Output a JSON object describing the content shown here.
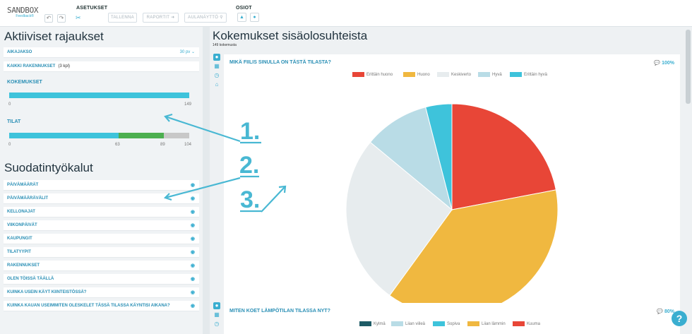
{
  "brand": {
    "name": "SANDBOX",
    "sub": "Feedback®"
  },
  "toolbar": {
    "asetukset_heading": "ASETUKSET",
    "osiot_heading": "OSIOT",
    "save_label": "TALLENNA",
    "reports_label": "RAPORTIT ➜",
    "aulanaytto_label": "AULANÄYTTÖ ⚲"
  },
  "left": {
    "active_title": "Aktiiviset rajaukset",
    "filters": [
      {
        "label": "AIKAJAKSO",
        "value": "30 pv ⌄"
      },
      {
        "label": "KAIKKI RAKENNUKSET",
        "sub": "(3 kpl)"
      }
    ],
    "kokemukset": {
      "label": "KOKEMUKSET",
      "min": "0",
      "max": "149",
      "total": 149
    },
    "tilat": {
      "label": "TILAT",
      "ticks": [
        "0",
        "63",
        "89",
        "104"
      ],
      "segments": [
        63,
        89,
        104
      ],
      "colors": [
        "#3ec3db",
        "#4caf50",
        "#c8c8c8"
      ]
    },
    "tools_title": "Suodatintyökalut",
    "tools": [
      "PÄIVÄMÄÄRÄT",
      "PÄIVÄMÄÄRÄVÄLIT",
      "KELLONAJAT",
      "VIIKONPÄIVÄT",
      "KAUPUNGIT",
      "TILATYYPIT",
      "RAKENNUKSET",
      "OLEN TÖISSÄ TÄÄLLÄ",
      "KUINKA USEIN KÄYT KIINTEISTÖSSÄ?",
      "KUINKA KAUAN USEIMMITEN OLESKELET TÄSSÄ TILASSA KÄYNTISI AIKANA?"
    ]
  },
  "main": {
    "title": "Kokemukset sisäolosuhteista",
    "count": "149 kokemusta",
    "card1": {
      "question": "MIKÄ FIILIS SINULLA ON TÄSTÄ TILASTA?",
      "percent": "💬 100%"
    },
    "card2": {
      "question": "MITEN KOET LÄMPÖTILAN TILASSA NYT?",
      "percent": "💬 80%"
    }
  },
  "chart_data": [
    {
      "type": "pie",
      "title": "MIKÄ FIILIS SINULLA ON TÄSTÄ TILASTA?",
      "categories": [
        "Erittäin huono",
        "Huono",
        "Keskiverto",
        "Hyvä",
        "Erittäin hyvä"
      ],
      "values": [
        22,
        38,
        26,
        10,
        4
      ],
      "colors": [
        "#e84637",
        "#f0b840",
        "#e7ecee",
        "#b9dce6",
        "#3ec3db"
      ]
    },
    {
      "type": "pie",
      "title": "MITEN KOET LÄMPÖTILAN TILASSA NYT?",
      "categories": [
        "Kylmä",
        "Liian viileä",
        "Sopiva",
        "Liian lämmin",
        "Kuuma"
      ],
      "colors": [
        "#1e5b66",
        "#b9dce6",
        "#3ec3db",
        "#f0b840",
        "#e84637"
      ]
    }
  ],
  "annotations": [
    "1.",
    "2.",
    "3."
  ]
}
